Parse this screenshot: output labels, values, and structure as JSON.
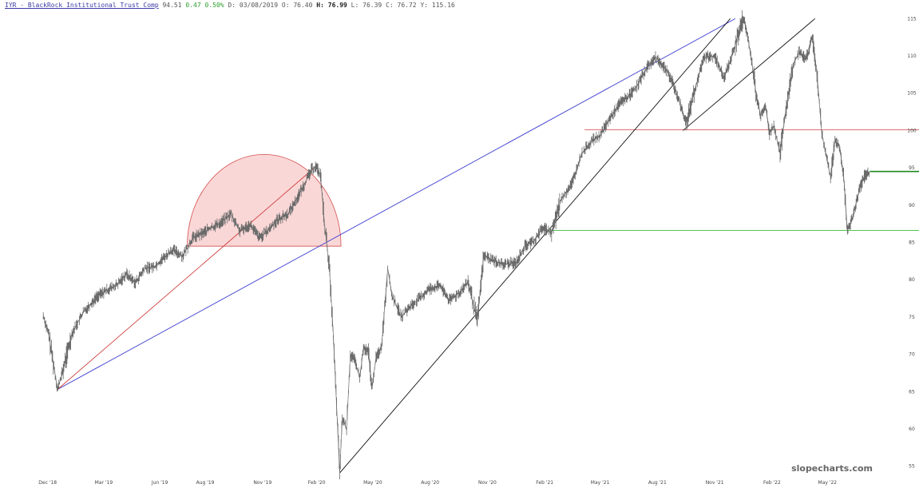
{
  "header": {
    "title": "IYR - BlackRock Institutional Trust Comp",
    "last": "94.51",
    "change": "0.47",
    "change_pct": "0.50%",
    "d_label": "D:",
    "date": "03/08/2019",
    "o_label": "O:",
    "open": "76.40",
    "h_label": "H:",
    "high": "76.99",
    "l_label": "L:",
    "low": "76.39",
    "c_label": "C:",
    "close": "76.72",
    "y_label": "Y:",
    "year_high": "115.16"
  },
  "watermark": "slopecharts.com",
  "colors": {
    "price": "#6b6b6b",
    "blue_trend": "#3a3ad0",
    "red_trend": "#d04040",
    "black_trend": "#111111",
    "resistance": "#e07070",
    "support": "#55c455",
    "short_support": "#1f8a1f",
    "dome_fill": "#f9d0d0",
    "dome_stroke": "#d45050"
  },
  "chart_data": {
    "type": "line",
    "title": "IYR - BlackRock Institutional Trust Comp",
    "xlabel": "",
    "ylabel": "",
    "ylim": [
      54,
      116
    ],
    "grid": false,
    "x_ticks": [
      "Dec '18",
      "Mar '19",
      "Jun '19",
      "Aug '19",
      "Nov '19",
      "Feb '20",
      "May '20",
      "Aug '20",
      "Nov '20",
      "Feb '21",
      "May '21",
      "Aug '21",
      "Nov '21",
      "Feb '22",
      "May '22"
    ],
    "y_ticks": [
      55,
      60,
      65,
      70,
      75,
      80,
      85,
      90,
      95,
      100,
      105,
      110,
      115
    ],
    "series": [
      {
        "values": [
          [
            "2018-12-03",
            75.2
          ],
          [
            "2018-12-12",
            72.5
          ],
          [
            "2018-12-21",
            67.8
          ],
          [
            "2018-12-26",
            65.3
          ],
          [
            "2019-01-04",
            68.0
          ],
          [
            "2019-01-18",
            72.8
          ],
          [
            "2019-02-05",
            75.6
          ],
          [
            "2019-02-28",
            77.8
          ],
          [
            "2019-03-15",
            78.6
          ],
          [
            "2019-04-01",
            79.3
          ],
          [
            "2019-04-15",
            80.8
          ],
          [
            "2019-04-30",
            79.6
          ],
          [
            "2019-05-15",
            81.5
          ],
          [
            "2019-05-31",
            81.8
          ],
          [
            "2019-06-14",
            82.9
          ],
          [
            "2019-06-28",
            84.0
          ],
          [
            "2019-07-15",
            83.2
          ],
          [
            "2019-07-31",
            85.6
          ],
          [
            "2019-08-15",
            86.2
          ],
          [
            "2019-08-30",
            87.0
          ],
          [
            "2019-09-13",
            87.6
          ],
          [
            "2019-09-30",
            88.8
          ],
          [
            "2019-10-15",
            86.5
          ],
          [
            "2019-10-31",
            87.4
          ],
          [
            "2019-11-15",
            85.6
          ],
          [
            "2019-11-29",
            86.6
          ],
          [
            "2019-12-13",
            88.0
          ],
          [
            "2019-12-31",
            88.8
          ],
          [
            "2020-01-15",
            91.0
          ],
          [
            "2020-01-31",
            93.6
          ],
          [
            "2020-02-07",
            94.8
          ],
          [
            "2020-02-14",
            95.2
          ],
          [
            "2020-02-21",
            94.0
          ],
          [
            "2020-02-28",
            87.0
          ],
          [
            "2020-03-06",
            82.0
          ],
          [
            "2020-03-12",
            73.5
          ],
          [
            "2020-03-18",
            63.0
          ],
          [
            "2020-03-23",
            54.1
          ],
          [
            "2020-03-27",
            61.5
          ],
          [
            "2020-04-03",
            60.0
          ],
          [
            "2020-04-09",
            70.0
          ],
          [
            "2020-04-17",
            69.0
          ],
          [
            "2020-04-24",
            66.8
          ],
          [
            "2020-04-30",
            70.8
          ],
          [
            "2020-05-08",
            70.2
          ],
          [
            "2020-05-14",
            65.5
          ],
          [
            "2020-05-20",
            69.5
          ],
          [
            "2020-05-29",
            71.0
          ],
          [
            "2020-06-08",
            81.5
          ],
          [
            "2020-06-15",
            77.8
          ],
          [
            "2020-06-30",
            75.0
          ],
          [
            "2020-07-15",
            76.5
          ],
          [
            "2020-07-31",
            77.6
          ],
          [
            "2020-08-14",
            78.8
          ],
          [
            "2020-08-31",
            79.2
          ],
          [
            "2020-09-15",
            77.2
          ],
          [
            "2020-09-30",
            78.2
          ],
          [
            "2020-10-15",
            79.6
          ],
          [
            "2020-10-30",
            74.5
          ],
          [
            "2020-11-09",
            83.2
          ],
          [
            "2020-11-25",
            82.6
          ],
          [
            "2020-12-10",
            82.0
          ],
          [
            "2020-12-31",
            82.3
          ],
          [
            "2021-01-15",
            84.6
          ],
          [
            "2021-01-29",
            85.2
          ],
          [
            "2021-02-12",
            87.0
          ],
          [
            "2021-02-26",
            86.2
          ],
          [
            "2021-03-12",
            90.5
          ],
          [
            "2021-03-31",
            93.0
          ],
          [
            "2021-04-15",
            96.8
          ],
          [
            "2021-04-30",
            98.5
          ],
          [
            "2021-05-14",
            99.2
          ],
          [
            "2021-05-28",
            101.2
          ],
          [
            "2021-06-15",
            103.6
          ],
          [
            "2021-06-30",
            104.6
          ],
          [
            "2021-07-15",
            106.2
          ],
          [
            "2021-07-30",
            108.6
          ],
          [
            "2021-08-13",
            109.8
          ],
          [
            "2021-08-31",
            108.0
          ],
          [
            "2021-09-15",
            105.0
          ],
          [
            "2021-09-30",
            101.0
          ],
          [
            "2021-10-15",
            105.8
          ],
          [
            "2021-10-29",
            109.8
          ],
          [
            "2021-11-15",
            110.0
          ],
          [
            "2021-11-30",
            107.0
          ],
          [
            "2021-12-15",
            110.6
          ],
          [
            "2021-12-31",
            115.2
          ],
          [
            "2022-01-07",
            112.6
          ],
          [
            "2022-01-14",
            109.0
          ],
          [
            "2022-01-21",
            104.6
          ],
          [
            "2022-01-28",
            102.0
          ],
          [
            "2022-02-04",
            103.6
          ],
          [
            "2022-02-11",
            99.6
          ],
          [
            "2022-02-18",
            100.6
          ],
          [
            "2022-02-28",
            97.0
          ],
          [
            "2022-03-10",
            103.2
          ],
          [
            "2022-03-21",
            108.8
          ],
          [
            "2022-03-31",
            110.6
          ],
          [
            "2022-04-08",
            109.8
          ],
          [
            "2022-04-14",
            110.2
          ],
          [
            "2022-04-21",
            112.8
          ],
          [
            "2022-04-29",
            106.8
          ],
          [
            "2022-05-06",
            99.5
          ],
          [
            "2022-05-13",
            96.6
          ],
          [
            "2022-05-20",
            93.8
          ],
          [
            "2022-05-27",
            98.5
          ],
          [
            "2022-06-03",
            98.0
          ],
          [
            "2022-06-10",
            94.0
          ],
          [
            "2022-06-16",
            86.6
          ],
          [
            "2022-06-24",
            88.2
          ],
          [
            "2022-07-05",
            92.0
          ],
          [
            "2022-07-14",
            94.0
          ],
          [
            "2022-07-22",
            94.51
          ]
        ]
      }
    ],
    "trendlines": [
      {
        "style": "blue",
        "from": [
          "2018-12-26",
          65.3
        ],
        "to": [
          "2021-12-18",
          115.0
        ]
      },
      {
        "style": "red",
        "from": [
          "2018-12-26",
          65.3
        ],
        "to": [
          "2020-02-14",
          95.2
        ]
      },
      {
        "style": "black",
        "from": [
          "2020-03-23",
          54.1
        ],
        "to": [
          "2021-12-10",
          115.0
        ]
      },
      {
        "style": "black",
        "from": [
          "2021-09-25",
          100.0
        ],
        "to": [
          "2022-04-25",
          115.0
        ]
      }
    ],
    "horizontal_lines": [
      {
        "style": "resistance",
        "y": 100.1,
        "from": "2021-04-20"
      },
      {
        "style": "support",
        "y": 86.6,
        "from": "2021-02-22"
      },
      {
        "style": "short_support",
        "y": 94.51,
        "from": "2022-07-22"
      }
    ],
    "dome": {
      "from": "2019-07-22",
      "to": "2020-03-25",
      "base": 84.5,
      "top": 96.8
    }
  }
}
